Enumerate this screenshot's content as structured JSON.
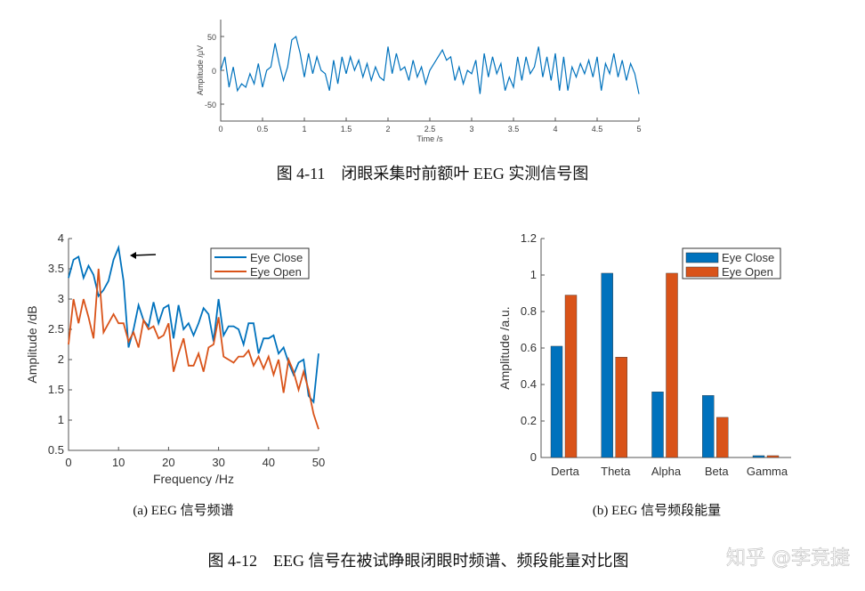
{
  "captions": {
    "fig_4_11": "图 4-11　闭眼采集时前额叶 EEG 实测信号图",
    "sub_a": "(a) EEG 信号频谱",
    "sub_b": "(b) EEG 信号频段能量",
    "fig_4_12": "图 4-12　EEG 信号在被试睁眼闭眼时频谱、频段能量对比图",
    "watermark": "知乎 @李竞捷"
  },
  "colors": {
    "eye_close": "#0072BD",
    "eye_open": "#D95319"
  },
  "chart_data": [
    {
      "type": "line",
      "xlabel": "Time /s",
      "ylabel": "Amplitude /μV",
      "xlim": [
        0,
        5
      ],
      "ylim": [
        -75,
        75
      ],
      "xticks": [
        0,
        0.5,
        1,
        1.5,
        2,
        2.5,
        3,
        3.5,
        4,
        4.5,
        5
      ],
      "yticks": [
        -50,
        0,
        50
      ],
      "grid": false,
      "x_step": 0.05,
      "series": [
        {
          "values": [
            0,
            20,
            -25,
            5,
            -30,
            -20,
            -25,
            -5,
            -20,
            10,
            -25,
            0,
            5,
            40,
            10,
            -15,
            5,
            45,
            50,
            25,
            -10,
            25,
            -5,
            20,
            0,
            -5,
            -30,
            15,
            -20,
            20,
            -5,
            20,
            0,
            15,
            -10,
            10,
            -15,
            5,
            -10,
            -15,
            35,
            -5,
            25,
            0,
            5,
            -15,
            15,
            -10,
            5,
            -20,
            0,
            10,
            20,
            30,
            15,
            20,
            -15,
            5,
            -20,
            0,
            -5,
            15,
            -35,
            25,
            -10,
            20,
            -5,
            10,
            -30,
            -10,
            -25,
            20,
            -15,
            20,
            -5,
            5,
            35,
            -10,
            20,
            -15,
            25,
            -30,
            20,
            -30,
            5,
            -10,
            10,
            -5,
            15,
            -10,
            20,
            -30,
            10,
            -5,
            25,
            -10,
            15,
            -15,
            10,
            -5,
            -35
          ]
        }
      ]
    },
    {
      "type": "line",
      "xlabel": "Frequency /Hz",
      "ylabel": "Amplitude /dB",
      "xlim": [
        0,
        50
      ],
      "ylim": [
        0.5,
        4
      ],
      "xticks": [
        0,
        10,
        20,
        30,
        40,
        50
      ],
      "yticks": [
        0.5,
        1,
        1.5,
        2,
        2.5,
        3,
        3.5,
        4
      ],
      "grid": false,
      "legend": "top-right",
      "annotation": "arrow pointing at ~10 Hz peak",
      "x": [
        0,
        1,
        2,
        3,
        4,
        5,
        6,
        7,
        8,
        9,
        10,
        11,
        12,
        13,
        14,
        15,
        16,
        17,
        18,
        19,
        20,
        21,
        22,
        23,
        24,
        25,
        26,
        27,
        28,
        29,
        30,
        31,
        32,
        33,
        34,
        35,
        36,
        37,
        38,
        39,
        40,
        41,
        42,
        43,
        44,
        45,
        46,
        47,
        48,
        49,
        50
      ],
      "series": [
        {
          "name": "Eye Close",
          "values": [
            3.35,
            3.65,
            3.7,
            3.35,
            3.55,
            3.4,
            3.05,
            3.15,
            3.3,
            3.65,
            3.85,
            3.3,
            2.2,
            2.5,
            2.9,
            2.65,
            2.55,
            2.95,
            2.6,
            2.85,
            2.9,
            2.35,
            2.9,
            2.5,
            2.6,
            2.4,
            2.6,
            2.85,
            2.75,
            2.3,
            3.0,
            2.4,
            2.55,
            2.55,
            2.5,
            2.25,
            2.6,
            2.6,
            2.1,
            2.35,
            2.35,
            2.4,
            2.1,
            2.2,
            1.95,
            1.75,
            1.95,
            2.0,
            1.4,
            1.3,
            2.1
          ]
        },
        {
          "name": "Eye Open",
          "values": [
            2.25,
            3.0,
            2.6,
            3.0,
            2.7,
            2.35,
            3.5,
            2.45,
            2.6,
            2.75,
            2.6,
            2.6,
            2.3,
            2.45,
            2.2,
            2.65,
            2.5,
            2.55,
            2.35,
            2.4,
            2.6,
            1.8,
            2.1,
            2.35,
            1.9,
            1.9,
            2.1,
            1.8,
            2.2,
            2.25,
            2.7,
            2.05,
            2.0,
            1.95,
            2.05,
            2.05,
            2.15,
            1.9,
            2.05,
            1.85,
            2.05,
            1.75,
            2.0,
            1.45,
            2.0,
            1.8,
            1.5,
            1.8,
            1.5,
            1.1,
            0.85
          ]
        }
      ]
    },
    {
      "type": "bar",
      "xlabel": "",
      "ylabel": "Amplitude /a.u.",
      "ylim": [
        0,
        1.2
      ],
      "yticks": [
        0,
        0.2,
        0.4,
        0.6,
        0.8,
        1,
        1.2
      ],
      "grid": false,
      "legend": "top-right",
      "categories": [
        "Derta",
        "Theta",
        "Alpha",
        "Beta",
        "Gamma"
      ],
      "series": [
        {
          "name": "Eye Close",
          "values": [
            0.61,
            1.01,
            0.36,
            0.34,
            0.01
          ]
        },
        {
          "name": "Eye Open",
          "values": [
            0.89,
            0.55,
            1.01,
            0.22,
            0.01
          ]
        }
      ]
    }
  ]
}
